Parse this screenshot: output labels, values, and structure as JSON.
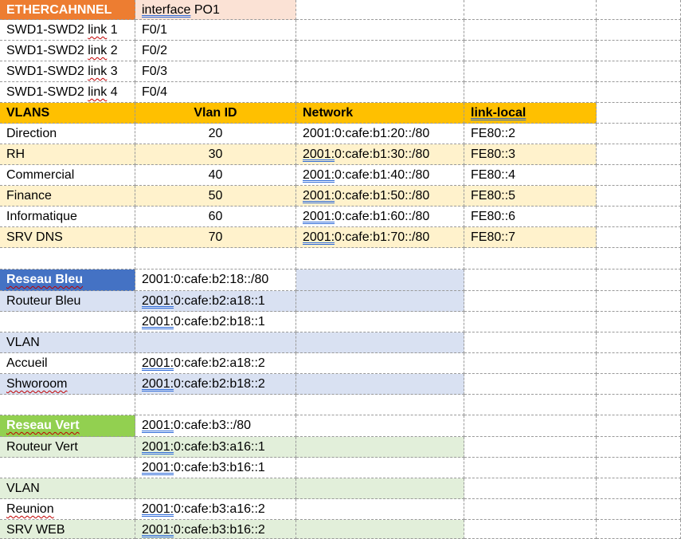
{
  "etherchannel": {
    "title": "ETHERCAHNNEL",
    "interface_word": "interface",
    "interface_name": " PO1",
    "links": [
      {
        "label_a": "SWD1-SWD2 ",
        "label_b": "link",
        "label_c": " 1",
        "port": "F0/1"
      },
      {
        "label_a": "SWD1-SWD2 ",
        "label_b": "link",
        "label_c": " 2",
        "port": "F0/2"
      },
      {
        "label_a": "SWD1-SWD2 ",
        "label_b": "link",
        "label_c": " 3",
        "port": "F0/3"
      },
      {
        "label_a": "SWD1-SWD2 ",
        "label_b": "link",
        "label_c": " 4",
        "port": "F0/4"
      }
    ]
  },
  "vlans": {
    "headers": [
      "VLANS",
      "Vlan ID",
      "Network",
      "link-local"
    ],
    "rows": [
      {
        "name": "Direction",
        "id": "20",
        "net_a": "2001:",
        "net_b": "0:cafe:b1:20::/80",
        "ll": "FE80::2"
      },
      {
        "name": "RH",
        "id": "30",
        "net_a": "2001:",
        "net_b": "0:cafe:b1:30::/80",
        "ll": "FE80::3"
      },
      {
        "name": "Commercial",
        "id": "40",
        "net_a": "2001:",
        "net_b": "0:cafe:b1:40::/80",
        "ll": "FE80::4"
      },
      {
        "name": "Finance",
        "id": "50",
        "net_a": "2001:",
        "net_b": "0:cafe:b1:50::/80",
        "ll": "FE80::5"
      },
      {
        "name": "Informatique",
        "id": "60",
        "net_a": "2001:",
        "net_b": "0:cafe:b1:60::/80",
        "ll": "FE80::6"
      },
      {
        "name": "SRV DNS",
        "id": "70",
        "net_a": "2001:",
        "net_b": "0:cafe:b1:70::/80",
        "ll": "FE80::7"
      }
    ]
  },
  "reseau_bleu": {
    "title": "Reseau Bleu",
    "network": "2001:0:cafe:b2:18::/80",
    "router_label": "Routeur Bleu",
    "router_addr1_a": "2001:",
    "router_addr1_b": "0:cafe:b2:a18::1",
    "router_addr2_a": "2001:",
    "router_addr2_b": "0:cafe:b2:b18::1",
    "vlan_label": "VLAN",
    "vlans": [
      {
        "name": "Accueil",
        "addr_a": "2001:",
        "addr_b": "0:cafe:b2:a18::2"
      },
      {
        "name": "Shworoom",
        "addr_a": "2001:",
        "addr_b": "0:cafe:b2:b18::2"
      }
    ]
  },
  "reseau_vert": {
    "title": "Reseau Vert",
    "network_a": "2001:",
    "network_b": "0:cafe:b3::/80",
    "router_label": "Routeur Vert",
    "router_addr1_a": "2001:",
    "router_addr1_b": "0:cafe:b3:a16::1",
    "router_addr2_a": "2001:",
    "router_addr2_b": "0:cafe:b3:b16::1",
    "vlan_label": "VLAN",
    "vlans": [
      {
        "name": "Reunion",
        "addr_a": "2001:",
        "addr_b": "0:cafe:b3:a16::2"
      },
      {
        "name": "SRV WEB",
        "addr_a": "2001:",
        "addr_b": "0:cafe:b3:b16::2"
      }
    ]
  },
  "colors": {
    "orange": "#ed7d31",
    "peach": "#fbe2d5",
    "gold": "#ffc000",
    "cream": "#fff2cc",
    "blue": "#4472c4",
    "light_blue": "#d9e1f2",
    "green": "#92d050",
    "light_green": "#e2efda",
    "spell_underline": "#c00000",
    "grammar_underline": "#2f6bd8"
  }
}
